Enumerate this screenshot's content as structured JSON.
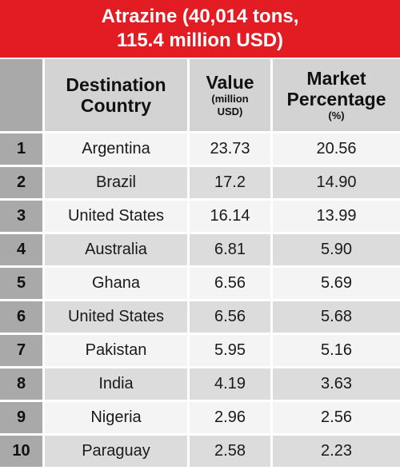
{
  "title": {
    "line1": "Atrazine (40,014 tons,",
    "line2": "115.4 million USD)"
  },
  "header": {
    "country_line1": "Destination",
    "country_line2": "Country",
    "value_label": "Value",
    "value_unit_line1": "(million",
    "value_unit_line2": "USD)",
    "share_line1": "Market",
    "share_line2": "Percentage",
    "share_unit": "(%)"
  },
  "rows": [
    {
      "rank": "1",
      "country": "Argentina",
      "value": "23.73",
      "share": "20.56"
    },
    {
      "rank": "2",
      "country": "Brazil",
      "value": "17.2",
      "share": "14.90"
    },
    {
      "rank": "3",
      "country": "United States",
      "value": "16.14",
      "share": "13.99"
    },
    {
      "rank": "4",
      "country": "Australia",
      "value": "6.81",
      "share": "5.90"
    },
    {
      "rank": "5",
      "country": "Ghana",
      "value": "6.56",
      "share": "5.69"
    },
    {
      "rank": "6",
      "country": "United States",
      "value": "6.56",
      "share": "5.68"
    },
    {
      "rank": "7",
      "country": "Pakistan",
      "value": "5.95",
      "share": "5.16"
    },
    {
      "rank": "8",
      "country": "India",
      "value": "4.19",
      "share": "3.63"
    },
    {
      "rank": "9",
      "country": "Nigeria",
      "value": "2.96",
      "share": "2.56"
    },
    {
      "rank": "10",
      "country": "Paraguay",
      "value": "2.58",
      "share": "2.23"
    }
  ],
  "colors": {
    "title_bg": "#e31b23",
    "rank_column_bg": "#a9a9a9",
    "header_bg": "#d3d3d3",
    "row_light": "#f4f4f4",
    "row_dark": "#dcdcdc"
  }
}
